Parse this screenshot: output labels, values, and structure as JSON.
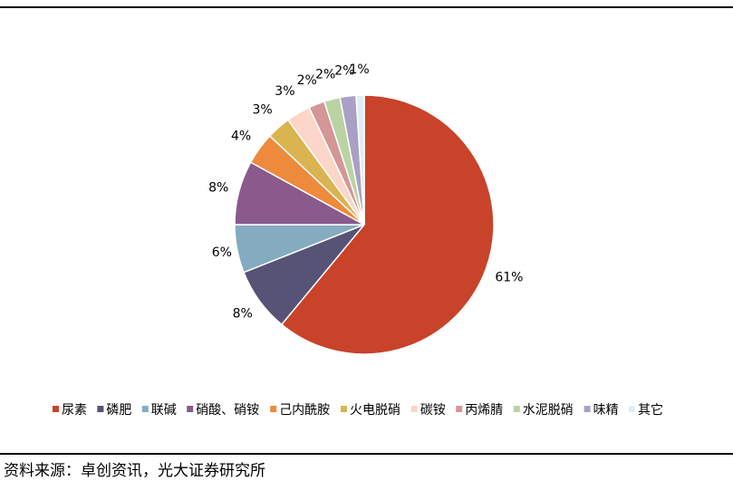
{
  "source_note": "资料来源：卓创资讯，光大证券研究所",
  "chart_data": {
    "type": "pie",
    "legend_position": "bottom",
    "categories": [
      "尿素",
      "磷肥",
      "联碱",
      "硝酸、硝铵",
      "己内酰胺",
      "火电脱硝",
      "碳铵",
      "丙烯腈",
      "水泥脱硝",
      "味精",
      "其它"
    ],
    "values": [
      61,
      8,
      6,
      8,
      4,
      3,
      3,
      2,
      2,
      2,
      1
    ],
    "data_labels": [
      "61%",
      "8%",
      "6%",
      "8%",
      "4%",
      "3%",
      "3%",
      "2%",
      "2%",
      "2%",
      "1%"
    ],
    "colors": [
      "#C8432A",
      "#565377",
      "#84ABBF",
      "#8B5A8C",
      "#EE8A3C",
      "#D9B451",
      "#FBD6C9",
      "#D49696",
      "#BBD3A3",
      "#AAA0C5",
      "#DDEEF4"
    ]
  }
}
